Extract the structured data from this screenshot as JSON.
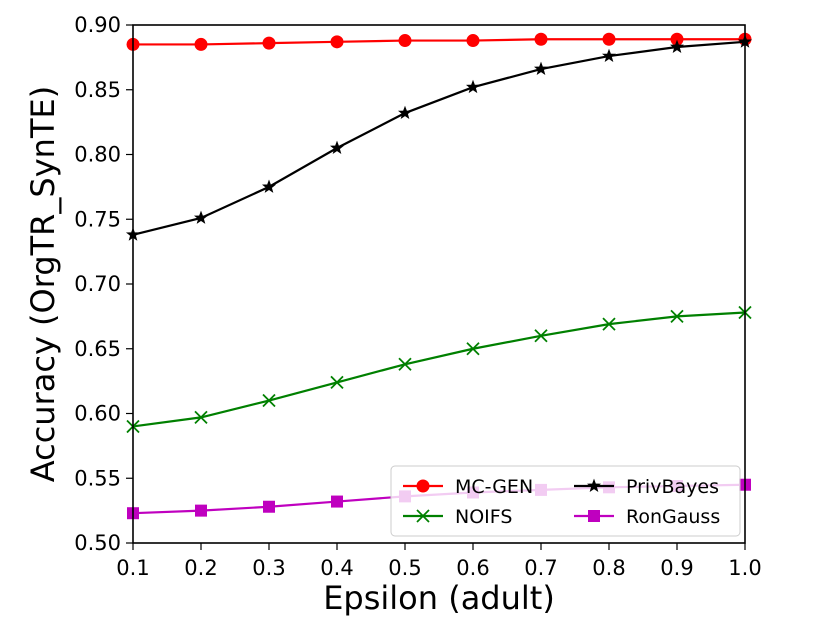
{
  "chart_data": {
    "type": "line",
    "xlabel": "Epsilon (adult)",
    "ylabel": "Accuracy (OrgTR_SynTE)",
    "xlim": [
      0.1,
      1.0
    ],
    "ylim": [
      0.5,
      0.9
    ],
    "xticks": [
      "0.1",
      "0.2",
      "0.3",
      "0.4",
      "0.5",
      "0.6",
      "0.7",
      "0.8",
      "0.9",
      "1.0"
    ],
    "yticks": [
      "0.50",
      "0.55",
      "0.60",
      "0.65",
      "0.70",
      "0.75",
      "0.80",
      "0.85",
      "0.90"
    ],
    "grid": false,
    "legend_position": "bottom-right",
    "x": [
      0.1,
      0.2,
      0.3,
      0.4,
      0.5,
      0.6,
      0.7,
      0.8,
      0.9,
      1.0
    ],
    "series": [
      {
        "name": "MC-GEN",
        "color": "#ff0000",
        "marker": "circle",
        "values": [
          0.885,
          0.885,
          0.886,
          0.887,
          0.888,
          0.888,
          0.889,
          0.889,
          0.889,
          0.889
        ]
      },
      {
        "name": "NOIFS",
        "color": "#008000",
        "marker": "x",
        "values": [
          0.59,
          0.597,
          0.61,
          0.624,
          0.638,
          0.65,
          0.66,
          0.669,
          0.675,
          0.678
        ]
      },
      {
        "name": "PrivBayes",
        "color": "#000000",
        "marker": "star",
        "values": [
          0.738,
          0.751,
          0.775,
          0.805,
          0.832,
          0.852,
          0.866,
          0.876,
          0.883,
          0.887
        ]
      },
      {
        "name": "RonGauss",
        "color": "#bf00bf",
        "marker": "square",
        "values": [
          0.523,
          0.525,
          0.528,
          0.532,
          0.536,
          0.539,
          0.541,
          0.543,
          0.544,
          0.545
        ]
      }
    ]
  }
}
